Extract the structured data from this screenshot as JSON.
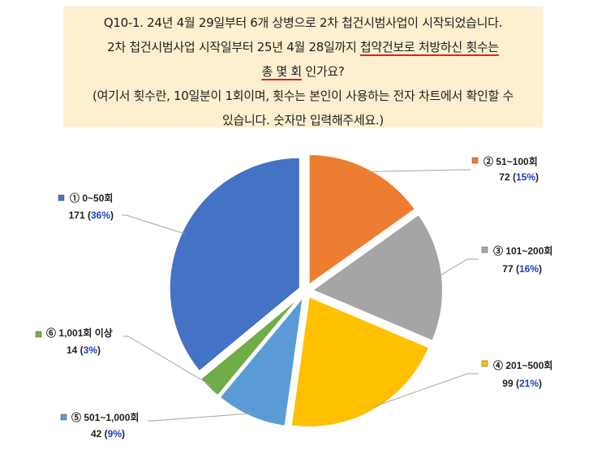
{
  "question": {
    "line1": "Q10-1.  24년 4월 29일부터 6개 상병으로 2차 첩건시범사업이 시작되었습니다.",
    "line2_pre": "2차 첩건시범사업 시작일부터 25년 4월 28일까지 ",
    "line2_ul": "첩약건보로 처방하신 횟수는",
    "line3_ul": "총 몇 회",
    "line3_post": " 인가요?",
    "line4": "(여기서 횟수란, 10일분이 1회이며, 횟수는 본인이 사용하는 전자 차트에서 확인할 수",
    "line5": "있습니다. 숫자만 입력해주세요.)"
  },
  "chart_data": {
    "type": "pie",
    "slices": [
      {
        "label": "② 51~100회",
        "value": 72,
        "percent": "15%",
        "color": "#ed7d31"
      },
      {
        "label": "③ 101~200회",
        "value": 77,
        "percent": "16%",
        "color": "#a5a5a5"
      },
      {
        "label": "④ 201~500회",
        "value": 99,
        "percent": "21%",
        "color": "#ffc000"
      },
      {
        "label": "⑤ 501~1,000회",
        "value": 42,
        "percent": "9%",
        "color": "#5b9bd5"
      },
      {
        "label": "⑥ 1,001회 이상",
        "value": 14,
        "percent": "3%",
        "color": "#70ad47"
      },
      {
        "label": "① 0~50회",
        "value": 171,
        "percent": "36%",
        "color": "#4472c4"
      }
    ]
  }
}
